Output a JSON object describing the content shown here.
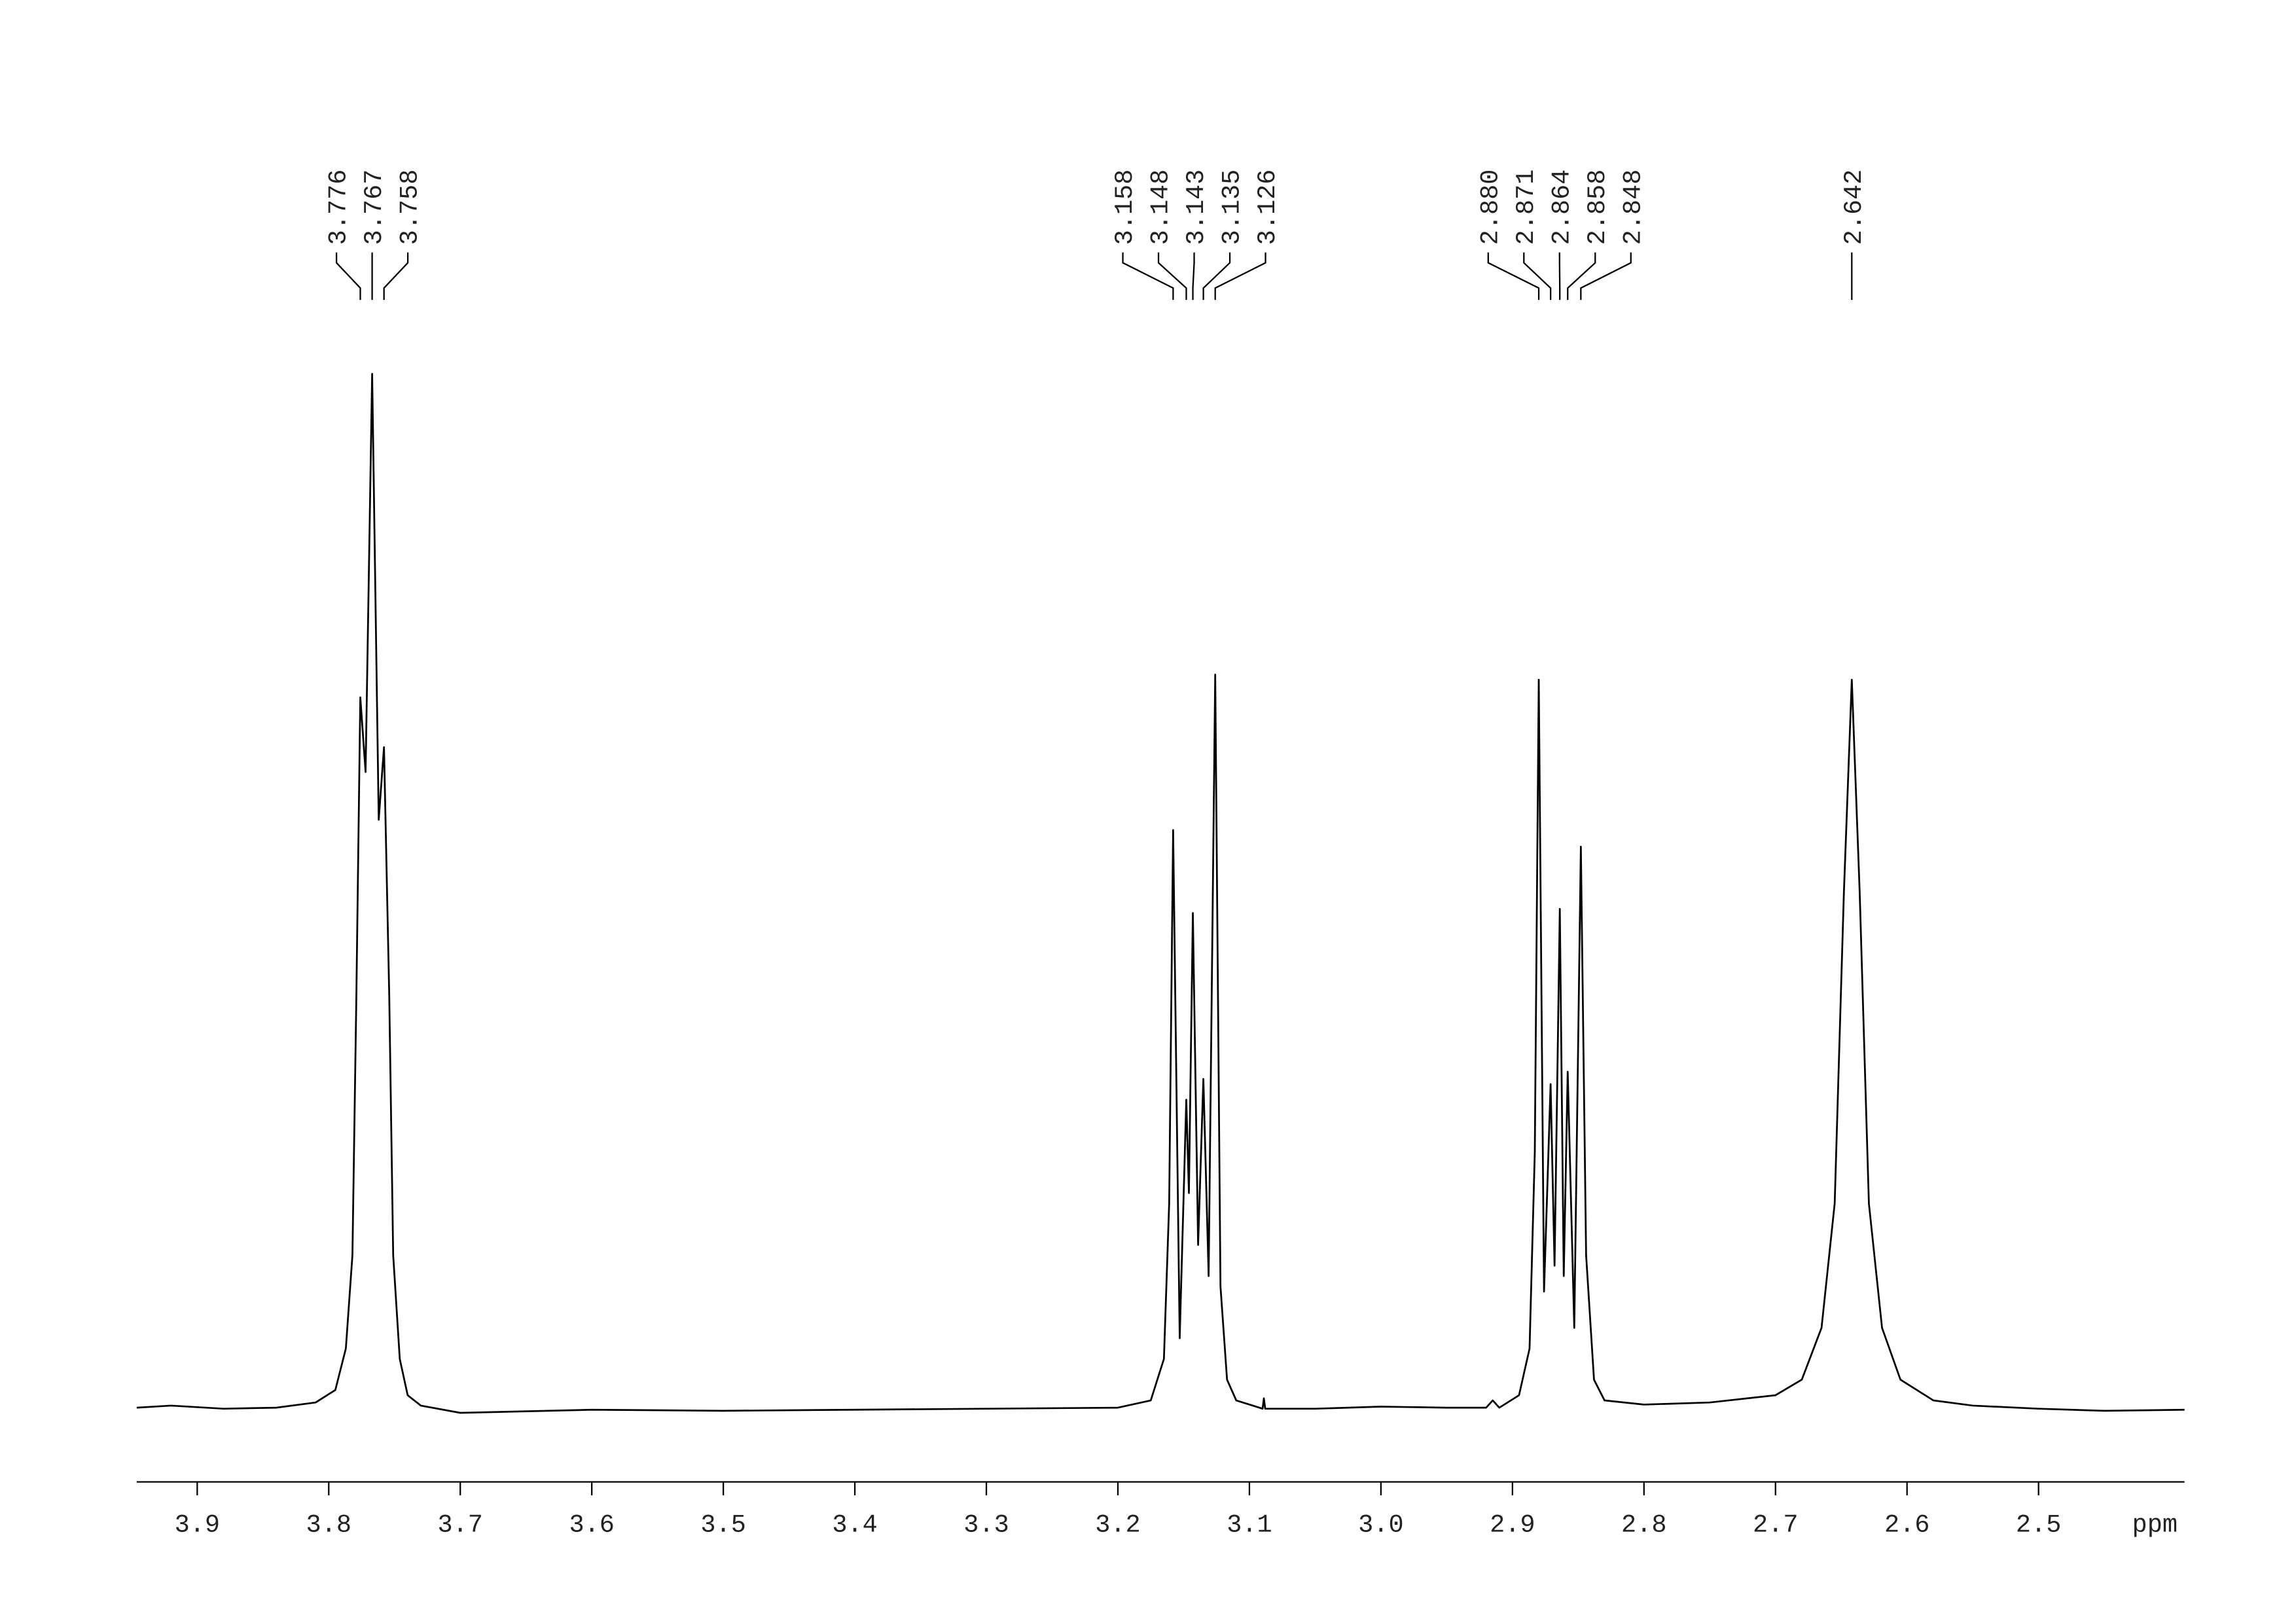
{
  "chart_data": {
    "type": "line",
    "x_label": "ppm",
    "xlim": [
      3.946,
      2.389
    ],
    "ylim": [
      -5,
      115
    ],
    "xticks": [
      3.9,
      3.8,
      3.7,
      3.6,
      3.5,
      3.4,
      3.3,
      3.2,
      3.1,
      {
        "value": 3,
        "label": "3.0"
      },
      2.9,
      2.8,
      2.7,
      2.6,
      2.5
    ],
    "color": "#000000",
    "x": [
      3.946,
      3.92,
      3.88,
      3.84,
      3.81,
      3.795,
      3.787,
      3.782,
      3.779,
      3.776,
      3.772,
      3.767,
      3.762,
      3.758,
      3.754,
      3.751,
      3.746,
      3.74,
      3.73,
      3.7,
      3.6,
      3.5,
      3.4,
      3.3,
      3.2,
      3.175,
      3.165,
      3.161,
      3.158,
      3.153,
      3.148,
      3.146,
      3.143,
      3.139,
      3.135,
      3.131,
      3.126,
      3.122,
      3.117,
      3.11,
      3.09,
      3.089,
      3.088,
      3.05,
      3.0,
      2.95,
      2.92,
      2.915,
      2.91,
      2.895,
      2.887,
      2.883,
      2.88,
      2.876,
      2.871,
      2.868,
      2.864,
      2.861,
      2.858,
      2.853,
      2.848,
      2.844,
      2.838,
      2.83,
      2.8,
      2.75,
      2.7,
      2.68,
      2.665,
      2.655,
      2.648,
      2.642,
      2.636,
      2.629,
      2.619,
      2.605,
      2.58,
      2.55,
      2.5,
      2.45,
      2.389
    ],
    "values": [
      0.3,
      0.5,
      0.2,
      0.3,
      0.8,
      2,
      6,
      15,
      40,
      68.8,
      61.6,
      100,
      57,
      64,
      40,
      15,
      5,
      1.5,
      0.5,
      -0.2,
      0.1,
      0,
      0.1,
      0.2,
      0.3,
      1,
      5,
      20,
      56,
      7,
      30,
      21,
      48,
      16,
      32,
      13,
      71,
      12,
      3,
      1,
      0.2,
      1.2,
      0.2,
      0.2,
      0.4,
      0.3,
      0.3,
      1,
      0.3,
      1.5,
      6,
      25,
      70.5,
      11.5,
      31.5,
      14,
      48.4,
      13,
      32.7,
      8,
      54.4,
      15,
      3,
      1,
      0.6,
      0.8,
      1.5,
      3,
      8,
      20,
      50,
      70.5,
      50,
      20,
      8,
      3,
      1,
      0.5,
      0.2,
      0,
      0.1
    ],
    "peaks": [
      3.776,
      3.767,
      3.758,
      3.158,
      3.148,
      3.143,
      3.135,
      3.126,
      2.88,
      2.871,
      2.864,
      2.858,
      2.848,
      2.642
    ],
    "peak_labels": [
      "3.776",
      "3.767",
      "3.758",
      "3.158",
      "3.148",
      "3.143",
      "3.135",
      "3.126",
      "2.880",
      "2.871",
      "2.864",
      "2.858",
      "2.848",
      "2.642"
    ]
  }
}
